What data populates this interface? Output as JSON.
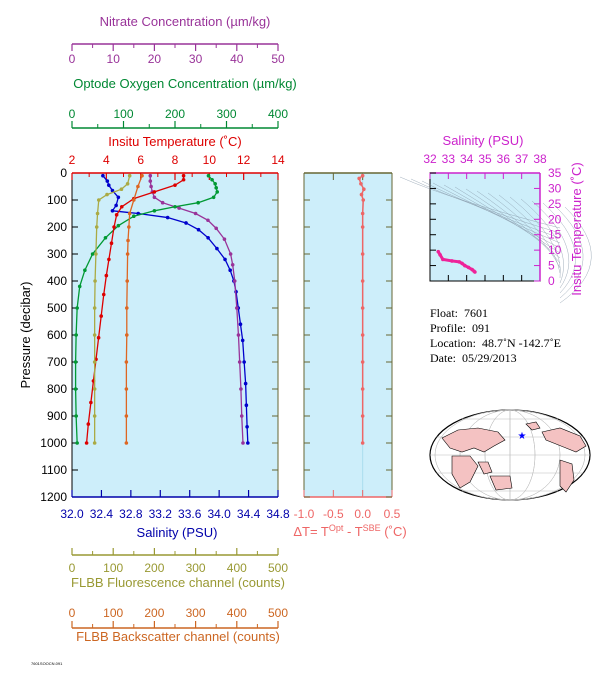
{
  "chart_data": [
    {
      "type": "scatter",
      "description_axes": "main profile panel",
      "ylabel": "Pressure (decibar)",
      "ylim": [
        1200,
        0
      ],
      "yticks": [
        "0",
        "100",
        "200",
        "300",
        "400",
        "500",
        "600",
        "700",
        "800",
        "900",
        "1000",
        "1100",
        "1200"
      ],
      "axes": {
        "nitrate": {
          "label": "Nitrate Concentration (µm/kg)",
          "range": [
            0,
            50
          ],
          "ticks": [
            "0",
            "10",
            "20",
            "30",
            "40",
            "50"
          ],
          "color": "#993399"
        },
        "oxygen": {
          "label": "Optode Oxygen Concentration (µm/kg)",
          "range": [
            0,
            400
          ],
          "ticks": [
            "0",
            "100",
            "200",
            "300",
            "400"
          ],
          "color": "#008833"
        },
        "temperature": {
          "label": "Insitu Temperature (˚C)",
          "range": [
            2,
            14
          ],
          "ticks": [
            "2",
            "4",
            "6",
            "8",
            "10",
            "12",
            "14"
          ],
          "color": "#dd0000"
        },
        "salinity": {
          "label": "Salinity (PSU)",
          "range": [
            32.0,
            34.8
          ],
          "ticks": [
            "32.0",
            "32.4",
            "32.8",
            "33.2",
            "33.6",
            "34.0",
            "34.4",
            "34.8"
          ],
          "color": "#0000aa"
        },
        "fluorescence": {
          "label": "FLBB Fluorescence channel (counts)",
          "range": [
            0,
            500
          ],
          "ticks": [
            "0",
            "100",
            "200",
            "300",
            "400",
            "500"
          ],
          "color": "#999933"
        },
        "backscatter": {
          "label": "FLBB Backscatter channel (counts)",
          "range": [
            0,
            500
          ],
          "ticks": [
            "0",
            "100",
            "200",
            "300",
            "400",
            "500"
          ],
          "color": "#cc6622"
        }
      },
      "series": [
        {
          "key": "salinity",
          "color": "#0000cc",
          "points": [
            [
              32.42,
              10
            ],
            [
              32.48,
              30
            ],
            [
              32.5,
              45
            ],
            [
              32.55,
              65
            ],
            [
              32.63,
              90
            ],
            [
              32.6,
              120
            ],
            [
              32.55,
              140
            ],
            [
              32.9,
              150
            ],
            [
              33.3,
              165
            ],
            [
              33.55,
              185
            ],
            [
              33.72,
              210
            ],
            [
              33.85,
              240
            ],
            [
              33.97,
              280
            ],
            [
              34.08,
              320
            ],
            [
              34.15,
              360
            ],
            [
              34.2,
              400
            ],
            [
              34.23,
              440
            ],
            [
              34.26,
              500
            ],
            [
              34.29,
              560
            ],
            [
              34.32,
              620
            ],
            [
              34.34,
              700
            ],
            [
              34.36,
              780
            ],
            [
              34.37,
              860
            ],
            [
              34.38,
              940
            ],
            [
              34.39,
              1000
            ]
          ]
        },
        {
          "key": "nitrate",
          "color": "#993399",
          "points": [
            [
              19,
              10
            ],
            [
              19,
              30
            ],
            [
              19.2,
              50
            ],
            [
              19.5,
              70
            ],
            [
              20,
              90
            ],
            [
              22,
              110
            ],
            [
              26,
              130
            ],
            [
              30,
              150
            ],
            [
              33,
              175
            ],
            [
              35,
              205
            ],
            [
              37,
              245
            ],
            [
              38.5,
              300
            ],
            [
              39,
              340
            ],
            [
              39.5,
              400
            ],
            [
              40,
              500
            ],
            [
              40.4,
              600
            ],
            [
              40.7,
              700
            ],
            [
              41,
              800
            ],
            [
              41.2,
              900
            ],
            [
              41.5,
              1000
            ]
          ]
        },
        {
          "key": "oxygen",
          "color": "#009933",
          "points": [
            [
              265,
              10
            ],
            [
              272,
              25
            ],
            [
              278,
              40
            ],
            [
              280,
              55
            ],
            [
              282,
              70
            ],
            [
              275,
              90
            ],
            [
              245,
              110
            ],
            [
              200,
              125
            ],
            [
              160,
              140
            ],
            [
              120,
              160
            ],
            [
              90,
              195
            ],
            [
              65,
              240
            ],
            [
              40,
              300
            ],
            [
              25,
              360
            ],
            [
              15,
              420
            ],
            [
              10,
              500
            ],
            [
              8,
              600
            ],
            [
              7,
              700
            ],
            [
              7,
              800
            ],
            [
              8,
              900
            ],
            [
              10,
              1000
            ]
          ]
        },
        {
          "key": "temperature",
          "color": "#dd0000",
          "points": [
            [
              8.5,
              10
            ],
            [
              8.5,
              25
            ],
            [
              8,
              45
            ],
            [
              6.8,
              70
            ],
            [
              5.6,
              95
            ],
            [
              4.9,
              125
            ],
            [
              4.6,
              155
            ],
            [
              4.45,
              200
            ],
            [
              4.3,
              260
            ],
            [
              4.15,
              320
            ],
            [
              4.0,
              380
            ],
            [
              3.85,
              450
            ],
            [
              3.7,
              530
            ],
            [
              3.55,
              610
            ],
            [
              3.4,
              690
            ],
            [
              3.25,
              770
            ],
            [
              3.1,
              850
            ],
            [
              2.95,
              930
            ],
            [
              2.85,
              1000
            ]
          ]
        },
        {
          "key": "fluorescence",
          "color": "#aaaa44",
          "points": [
            [
              140,
              10
            ],
            [
              135,
              40
            ],
            [
              120,
              60
            ],
            [
              85,
              80
            ],
            [
              65,
              100
            ],
            [
              62,
              150
            ],
            [
              60,
              200
            ],
            [
              58,
              300
            ],
            [
              56,
              400
            ],
            [
              55,
              500
            ],
            [
              55,
              600
            ],
            [
              55,
              700
            ],
            [
              55,
              800
            ],
            [
              55,
              900
            ],
            [
              55,
              1000
            ]
          ]
        },
        {
          "key": "backscatter",
          "color": "#dd6622",
          "points": [
            [
              170,
              10
            ],
            [
              160,
              50
            ],
            [
              150,
              100
            ],
            [
              140,
              150
            ],
            [
              138,
              200
            ],
            [
              136,
              250
            ],
            [
              135,
              300
            ],
            [
              134,
              400
            ],
            [
              133,
              500
            ],
            [
              133,
              600
            ],
            [
              132,
              700
            ],
            [
              132,
              800
            ],
            [
              132,
              900
            ],
            [
              132,
              1000
            ]
          ]
        }
      ]
    },
    {
      "type": "scatter",
      "description_axes": "delta T panel",
      "xlabel_prefix": "ΔT= T",
      "xlabel_sup1": "Opt",
      "xlabel_mid": " - T",
      "xlabel_sup2": "SBE",
      "xlabel_suffix": " (˚C)",
      "xlim": [
        -1.0,
        0.5
      ],
      "xticks": [
        "-1.0",
        "-0.5",
        "0.0",
        "0.5"
      ],
      "ylim": [
        1200,
        0
      ],
      "color": "#ee6666",
      "points": [
        [
          0.0,
          10
        ],
        [
          -0.06,
          20
        ],
        [
          -0.03,
          40
        ],
        [
          0.02,
          60
        ],
        [
          -0.02,
          80
        ],
        [
          0.01,
          100
        ],
        [
          0.0,
          150
        ],
        [
          0.0,
          200
        ],
        [
          0.0,
          300
        ],
        [
          0.0,
          400
        ],
        [
          0.0,
          500
        ],
        [
          0.0,
          600
        ],
        [
          0.0,
          700
        ],
        [
          0.0,
          800
        ],
        [
          0.0,
          900
        ],
        [
          0.0,
          1000
        ]
      ]
    },
    {
      "type": "line",
      "description_axes": "TS diagram",
      "title": "Salinity (PSU)",
      "xlim": [
        32,
        38
      ],
      "xticks": [
        "32",
        "33",
        "34",
        "35",
        "36",
        "37",
        "38"
      ],
      "ylabel": "Insitu Temperature (˚C)",
      "ylim": [
        0,
        35
      ],
      "yticks": [
        "0",
        "5",
        "10",
        "15",
        "20",
        "25",
        "30",
        "35"
      ],
      "color": "#ee2299",
      "points": [
        [
          32.45,
          9.5
        ],
        [
          32.55,
          8.5
        ],
        [
          32.7,
          7.0
        ],
        [
          33.2,
          6.5
        ],
        [
          33.6,
          6.2
        ],
        [
          33.75,
          5.7
        ],
        [
          33.9,
          5.0
        ],
        [
          34.1,
          4.4
        ],
        [
          34.3,
          3.7
        ],
        [
          34.4,
          3.2
        ],
        [
          34.45,
          2.9
        ]
      ]
    }
  ],
  "info": {
    "float_label": "Float:",
    "float_value": "7601",
    "profile_label": "Profile:",
    "profile_value": "091",
    "location_label": "Location:",
    "location_value": "48.7˚N  -142.7˚E",
    "date_label": "Date:",
    "date_value": "05/29/2013"
  },
  "map": {
    "marker_color": "#0000ff"
  },
  "footer_text": "7601SOOCN.091"
}
